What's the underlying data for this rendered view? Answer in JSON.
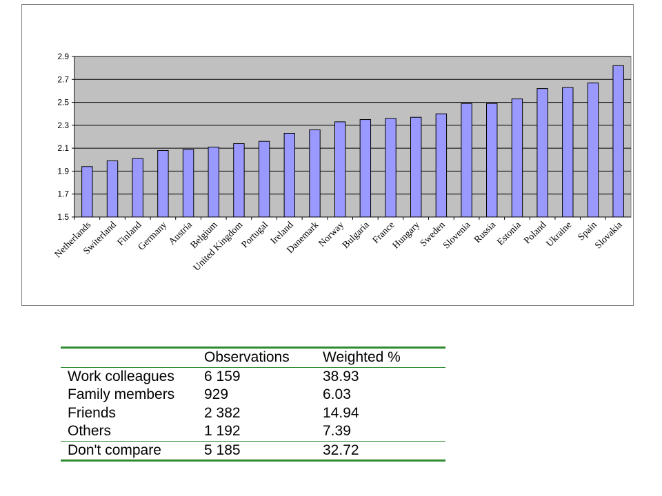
{
  "chart_data": {
    "type": "bar",
    "title": "",
    "xlabel": "",
    "ylabel": "",
    "ylim": [
      1.5,
      2.9
    ],
    "yticks": [
      "1.5",
      "1.7",
      "1.9",
      "2.1",
      "2.3",
      "2.5",
      "2.7",
      "2.9"
    ],
    "grid": true,
    "legend": "none",
    "bar_color": "#9999ff",
    "plot_background": "#c0c0c0",
    "categories": [
      "Netherlands",
      "Switerland",
      "Finland",
      "Germany",
      "Austria",
      "Belgium",
      "United Kingdom",
      "Portugal",
      "Ireland",
      "Danemark",
      "Norway",
      "Bulgaria",
      "France",
      "Hungary",
      "Sweden",
      "Slovenia",
      "Russia",
      "Estonia",
      "Poland",
      "Ukraine",
      "Spain",
      "Slovakia"
    ],
    "values": [
      1.94,
      1.99,
      2.01,
      2.08,
      2.09,
      2.11,
      2.14,
      2.16,
      2.23,
      2.26,
      2.33,
      2.35,
      2.36,
      2.37,
      2.4,
      2.49,
      2.49,
      2.53,
      2.62,
      2.63,
      2.67,
      2.82
    ]
  },
  "table": {
    "headers": [
      "",
      "Observations",
      "Weighted %"
    ],
    "rows": [
      [
        "Work colleagues",
        "6 159",
        "38.93"
      ],
      [
        "Family members",
        "929",
        "6.03"
      ],
      [
        "Friends",
        "2 382",
        "14.94"
      ],
      [
        "Others",
        "1 192",
        "7.39"
      ]
    ],
    "footer": [
      "Don't compare",
      "5 185",
      "32.72"
    ]
  }
}
